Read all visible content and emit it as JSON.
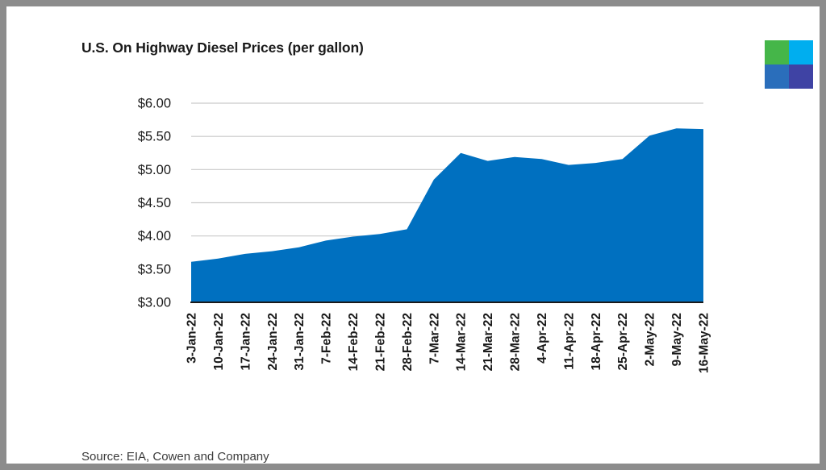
{
  "page": {
    "background": "#FFFFFF",
    "frame_color": "#8C8C8C"
  },
  "title": "U.S. On Highway Diesel Prices (per gallon)",
  "source": "Source: EIA, Cowen and Company",
  "logo": {
    "name": "brand-logo-squares",
    "colors": [
      "#45B649",
      "#00AEEF",
      "#2A6EBB",
      "#3F43A4"
    ]
  },
  "chart_data": {
    "type": "area",
    "title": "U.S. On Highway Diesel Prices (per gallon)",
    "categories": [
      "3-Jan-22",
      "10-Jan-22",
      "17-Jan-22",
      "24-Jan-22",
      "31-Jan-22",
      "7-Feb-22",
      "14-Feb-22",
      "21-Feb-22",
      "28-Feb-22",
      "7-Mar-22",
      "14-Mar-22",
      "21-Mar-22",
      "28-Mar-22",
      "4-Apr-22",
      "11-Apr-22",
      "18-Apr-22",
      "25-Apr-22",
      "2-May-22",
      "9-May-22",
      "16-May-22"
    ],
    "values": [
      3.61,
      3.66,
      3.73,
      3.77,
      3.83,
      3.93,
      3.99,
      4.03,
      4.1,
      4.85,
      5.25,
      5.13,
      5.19,
      5.16,
      5.07,
      5.1,
      5.16,
      5.51,
      5.62,
      5.61
    ],
    "ylim": [
      3.0,
      6.0
    ],
    "ytick_step": 0.5,
    "ytick_labels": [
      "$3.00",
      "$3.50",
      "$4.00",
      "$4.50",
      "$5.00",
      "$5.50",
      "$6.00"
    ],
    "xlabel": "",
    "ylabel": "",
    "grid": true,
    "legend": "none",
    "colors": {
      "fill": "#0070C0",
      "gridline": "#C9C9C9",
      "axis": "#1A1A1A",
      "label": "#1A1A1A"
    }
  }
}
